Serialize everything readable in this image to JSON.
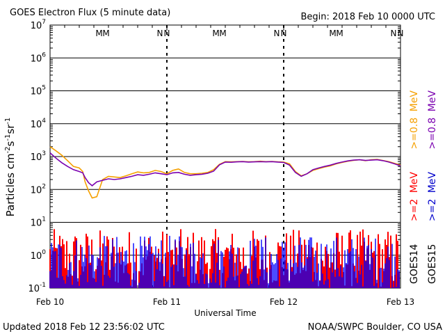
{
  "header": {
    "title": "GOES Electron Flux (5 minute data)",
    "begin": "Begin: 2018 Feb 10 0000 UTC"
  },
  "footer": {
    "updated": "Updated 2018 Feb 12 23:56:02 UTC",
    "credit": "NOAA/SWPC Boulder, CO USA"
  },
  "chart_data": {
    "type": "line",
    "title": "GOES Electron Flux (5 minute data)",
    "xlabel": "Universal Time",
    "ylabel": "Particles cm-2s-1sr-1",
    "ylabel_parts": {
      "base": "Particles cm",
      "e1": "-2",
      "mid1": "s",
      "e2": "-1",
      "mid2": "sr",
      "e3": "-1"
    },
    "x_ticks": [
      "Feb 10",
      "Feb 11",
      "Feb 12",
      "Feb 13"
    ],
    "xlim_days": [
      0,
      3
    ],
    "y_scale": "log",
    "ylim": [
      0.1,
      10000000
    ],
    "y_ticks": [
      {
        "base": "10",
        "exp": "-1"
      },
      {
        "base": "10",
        "exp": "0"
      },
      {
        "base": "10",
        "exp": "1"
      },
      {
        "base": "10",
        "exp": "2"
      },
      {
        "base": "10",
        "exp": "3"
      },
      {
        "base": "10",
        "exp": "4"
      },
      {
        "base": "10",
        "exp": "5"
      },
      {
        "base": "10",
        "exp": "6"
      },
      {
        "base": "10",
        "exp": "7"
      }
    ],
    "threshold": 1000,
    "markers": [
      {
        "day": 0.45,
        "letters": "MM"
      },
      {
        "day": 0.97,
        "letters": "NN"
      },
      {
        "day": 1.45,
        "letters": "MM"
      },
      {
        "day": 1.97,
        "letters": "NN"
      },
      {
        "day": 2.45,
        "letters": "MM"
      },
      {
        "day": 2.97,
        "letters": "NN"
      }
    ],
    "marker_colors": [
      "#0000cc",
      "#ff0000"
    ],
    "legend_right": [
      {
        "text": ">=2 MeV",
        "color": "#ff0000"
      },
      {
        "text": ">=0.8 MeV",
        "color": "#f5a000"
      },
      {
        "text": ">=2 MeV",
        "color": "#7a00b0"
      },
      {
        "text": ">=0.8 MeV",
        "color": "#7a00b0"
      },
      {
        "text": "GOES14",
        "color": "#000000"
      },
      {
        "text": "GOES15",
        "color": "#000000"
      }
    ],
    "legend_lines": [
      {
        "prefix": ">=2",
        "mid": ">=0.8",
        "unit": "MeV",
        "sat": "GOES14",
        "c1": "#ff0000",
        "c2": "#f5a000"
      },
      {
        "prefix": ">=2",
        "mid": ">=0.8",
        "unit": "MeV",
        "sat": "GOES15",
        "c1": "#0000cc",
        "c2": "#7a00b0"
      }
    ],
    "series": [
      {
        "name": "GOES14 >=0.8 MeV",
        "color": "#f5a000",
        "x": [
          0,
          0.05,
          0.1,
          0.15,
          0.2,
          0.25,
          0.28,
          0.3,
          0.33,
          0.36,
          0.4,
          0.45,
          0.5,
          0.55,
          0.6,
          0.65,
          0.7,
          0.75,
          0.8,
          0.85,
          0.9,
          0.95,
          1.0,
          1.05,
          1.1,
          1.15,
          1.2,
          1.25,
          1.3,
          1.35,
          1.4,
          1.45,
          1.5,
          1.55,
          1.6,
          1.65,
          1.7,
          1.75,
          1.8,
          1.85,
          1.9,
          1.95,
          2.0,
          2.05,
          2.1,
          2.15,
          2.2,
          2.25,
          2.3,
          2.35,
          2.4,
          2.45,
          2.5,
          2.55,
          2.6,
          2.65,
          2.7,
          2.75,
          2.8,
          2.85,
          2.9,
          2.95,
          3.0
        ],
        "y": [
          2000,
          1500,
          1100,
          750,
          500,
          450,
          350,
          170,
          90,
          55,
          60,
          200,
          250,
          240,
          230,
          260,
          300,
          340,
          320,
          330,
          380,
          350,
          300,
          380,
          420,
          330,
          300,
          300,
          310,
          330,
          400,
          580,
          700,
          690,
          700,
          710,
          690,
          700,
          720,
          700,
          710,
          690,
          680,
          600,
          350,
          260,
          300,
          380,
          430,
          480,
          520,
          600,
          660,
          720,
          770,
          800,
          750,
          800,
          820,
          760,
          700,
          620,
          550
        ]
      },
      {
        "name": "GOES15 >=0.8 MeV",
        "color": "#7a00b0",
        "x": [
          0,
          0.05,
          0.1,
          0.15,
          0.2,
          0.25,
          0.28,
          0.3,
          0.33,
          0.36,
          0.4,
          0.45,
          0.5,
          0.55,
          0.6,
          0.65,
          0.7,
          0.75,
          0.8,
          0.85,
          0.9,
          0.95,
          1.0,
          1.05,
          1.1,
          1.15,
          1.2,
          1.25,
          1.3,
          1.35,
          1.4,
          1.45,
          1.5,
          1.55,
          1.6,
          1.65,
          1.7,
          1.75,
          1.8,
          1.85,
          1.9,
          1.95,
          2.0,
          2.05,
          2.1,
          2.15,
          2.2,
          2.25,
          2.3,
          2.35,
          2.4,
          2.45,
          2.5,
          2.55,
          2.6,
          2.65,
          2.7,
          2.75,
          2.8,
          2.85,
          2.9,
          2.95,
          3.0
        ],
        "y": [
          1300,
          900,
          650,
          500,
          400,
          350,
          320,
          230,
          160,
          130,
          170,
          190,
          210,
          200,
          210,
          230,
          250,
          280,
          270,
          290,
          320,
          300,
          280,
          320,
          330,
          290,
          270,
          280,
          290,
          310,
          360,
          560,
          680,
          670,
          690,
          700,
          680,
          690,
          700,
          690,
          700,
          680,
          660,
          550,
          330,
          250,
          300,
          400,
          450,
          500,
          550,
          620,
          680,
          740,
          780,
          800,
          760,
          780,
          800,
          750,
          680,
          600,
          520
        ]
      }
    ],
    "noise_floor_note": "",
    "noise_series": [
      {
        "name": "GOES14 >=2 MeV",
        "color": "#ff0000"
      },
      {
        "name": "GOES15 >=2 MeV",
        "color": "#0000ff"
      }
    ]
  }
}
